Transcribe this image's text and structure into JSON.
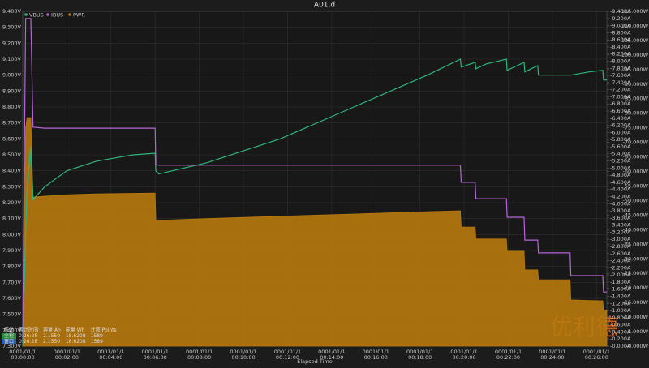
{
  "chart_data": {
    "type": "line",
    "title": "A01.d",
    "x_label": "Elapsed Time",
    "xlim": [
      0,
      1588
    ],
    "xticks": [
      {
        "value": 0,
        "label": "00:00:00",
        "date": "0001/01/1"
      },
      {
        "value": 120,
        "label": "00:02:00",
        "date": "0001/01/1"
      },
      {
        "value": 240,
        "label": "00:04:00",
        "date": "0001/01/1"
      },
      {
        "value": 360,
        "label": "00:06:00",
        "date": "0001/01/1"
      },
      {
        "value": 480,
        "label": "00:08:00",
        "date": "0001/01/1"
      },
      {
        "value": 600,
        "label": "00:10:00",
        "date": "0001/01/1"
      },
      {
        "value": 720,
        "label": "00:12:00",
        "date": "0001/01/1"
      },
      {
        "value": 840,
        "label": "00:14:00",
        "date": "0001/01/1"
      },
      {
        "value": 960,
        "label": "00:16:00",
        "date": "0001/01/1"
      },
      {
        "value": 1080,
        "label": "00:18:00",
        "date": "0001/01/1"
      },
      {
        "value": 1200,
        "label": "00:20:00",
        "date": "0001/01/1"
      },
      {
        "value": 1320,
        "label": "00:22:00",
        "date": "0001/01/1"
      },
      {
        "value": 1440,
        "label": "00:24:00",
        "date": "0001/01/1"
      },
      {
        "value": 1560,
        "label": "00:26:00",
        "date": "0001/01/1"
      }
    ],
    "ylim": [
      7.3,
      9.4
    ],
    "yticks": [
      {
        "value": 7.3,
        "label": "7.300V"
      },
      {
        "value": 7.4,
        "label": "7.400V"
      },
      {
        "value": 7.5,
        "label": "7.500V"
      },
      {
        "value": 7.6,
        "label": "7.600V"
      },
      {
        "value": 7.7,
        "label": "7.700V"
      },
      {
        "value": 7.8,
        "label": "7.800V"
      },
      {
        "value": 7.9,
        "label": "7.900V"
      },
      {
        "value": 8.0,
        "label": "8.000V"
      },
      {
        "value": 8.1,
        "label": "8.100V"
      },
      {
        "value": 8.2,
        "label": "8.200V"
      },
      {
        "value": 8.3,
        "label": "8.300V"
      },
      {
        "value": 8.4,
        "label": "8.400V"
      },
      {
        "value": 8.5,
        "label": "8.500V"
      },
      {
        "value": 8.6,
        "label": "8.600V"
      },
      {
        "value": 8.7,
        "label": "8.700V"
      },
      {
        "value": 8.8,
        "label": "8.800V"
      },
      {
        "value": 8.9,
        "label": "8.900V"
      },
      {
        "value": 9.0,
        "label": "9.000V"
      },
      {
        "value": 9.1,
        "label": "9.100V"
      },
      {
        "value": 9.2,
        "label": "9.200V"
      },
      {
        "value": 9.3,
        "label": "9.300V"
      },
      {
        "value": 9.4,
        "label": "9.400V"
      }
    ],
    "y2lim": [
      0,
      9.4
    ],
    "y2ticks": [
      {
        "value": 0,
        "label": "-0.000A"
      },
      {
        "value": 0.2,
        "label": "-0.200A"
      },
      {
        "value": 0.4,
        "label": "-0.400A"
      },
      {
        "value": 0.6,
        "label": "-0.600A"
      },
      {
        "value": 0.8,
        "label": "-0.800A"
      },
      {
        "value": 1.0,
        "label": "-1.000A"
      },
      {
        "value": 1.2,
        "label": "-1.200A"
      },
      {
        "value": 1.4,
        "label": "-1.400A"
      },
      {
        "value": 1.6,
        "label": "-1.600A"
      },
      {
        "value": 1.8,
        "label": "-1.800A"
      },
      {
        "value": 2.0,
        "label": "-2.000A"
      },
      {
        "value": 2.2,
        "label": "-2.200A"
      },
      {
        "value": 2.4,
        "label": "-2.400A"
      },
      {
        "value": 2.6,
        "label": "-2.600A"
      },
      {
        "value": 2.8,
        "label": "-2.800A"
      },
      {
        "value": 3.0,
        "label": "-3.000A"
      },
      {
        "value": 3.2,
        "label": "-3.200A"
      },
      {
        "value": 3.4,
        "label": "-3.400A"
      },
      {
        "value": 3.6,
        "label": "-3.600A"
      },
      {
        "value": 3.8,
        "label": "-3.800A"
      },
      {
        "value": 4.0,
        "label": "-4.000A"
      },
      {
        "value": 4.2,
        "label": "-4.200A"
      },
      {
        "value": 4.4,
        "label": "-4.400A"
      },
      {
        "value": 4.6,
        "label": "-4.600A"
      },
      {
        "value": 4.8,
        "label": "-4.800A"
      },
      {
        "value": 5.0,
        "label": "-5.000A"
      },
      {
        "value": 5.2,
        "label": "-5.200A"
      },
      {
        "value": 5.4,
        "label": "-5.400A"
      },
      {
        "value": 5.6,
        "label": "-5.600A"
      },
      {
        "value": 5.8,
        "label": "-5.800A"
      },
      {
        "value": 6.0,
        "label": "-6.000A"
      },
      {
        "value": 6.2,
        "label": "-6.200A"
      },
      {
        "value": 6.4,
        "label": "-6.400A"
      },
      {
        "value": 6.6,
        "label": "-6.600A"
      },
      {
        "value": 6.8,
        "label": "-6.800A"
      },
      {
        "value": 7.0,
        "label": "-7.000A"
      },
      {
        "value": 7.2,
        "label": "-7.200A"
      },
      {
        "value": 7.4,
        "label": "-7.400A"
      },
      {
        "value": 7.6,
        "label": "-7.600A"
      },
      {
        "value": 7.8,
        "label": "-7.800A"
      },
      {
        "value": 8.0,
        "label": "-8.000A"
      },
      {
        "value": 8.2,
        "label": "-8.200A"
      },
      {
        "value": 8.4,
        "label": "-8.400A"
      },
      {
        "value": 8.6,
        "label": "-8.600A"
      },
      {
        "value": 8.8,
        "label": "-8.800A"
      },
      {
        "value": 9.0,
        "label": "-9.000A"
      },
      {
        "value": 9.2,
        "label": "-9.200A"
      },
      {
        "value": 9.4,
        "label": "-9.400A"
      }
    ],
    "y3lim": [
      0,
      115
    ],
    "y3ticks": [
      {
        "value": 0,
        "label": "-0.000W"
      },
      {
        "value": 5,
        "label": "-5.000W"
      },
      {
        "value": 10,
        "label": "-10.000W"
      },
      {
        "value": 15,
        "label": "-15.000W"
      },
      {
        "value": 20,
        "label": "-20.000W"
      },
      {
        "value": 25,
        "label": "-25.000W"
      },
      {
        "value": 30,
        "label": "-30.000W"
      },
      {
        "value": 35,
        "label": "-35.000W"
      },
      {
        "value": 40,
        "label": "-40.000W"
      },
      {
        "value": 45,
        "label": "-45.000W"
      },
      {
        "value": 50,
        "label": "-50.000W"
      },
      {
        "value": 55,
        "label": "-55.000W"
      },
      {
        "value": 60,
        "label": "-60.000W"
      },
      {
        "value": 65,
        "label": "-65.000W"
      },
      {
        "value": 70,
        "label": "-70.000W"
      },
      {
        "value": 75,
        "label": "-75.000W"
      },
      {
        "value": 80,
        "label": "-80.000W"
      },
      {
        "value": 85,
        "label": "-85.000W"
      },
      {
        "value": 90,
        "label": "-90.000W"
      },
      {
        "value": 95,
        "label": "-95.000W"
      },
      {
        "value": 100,
        "label": "-100.000W"
      },
      {
        "value": 105,
        "label": "-105.000W"
      },
      {
        "value": 110,
        "label": "-110.000W"
      },
      {
        "value": 115,
        "label": "-115.000W"
      }
    ],
    "grid": true,
    "x": [
      0,
      8,
      12,
      22,
      28,
      60,
      120,
      200,
      300,
      360,
      362,
      370,
      500,
      700,
      900,
      1100,
      1190,
      1192,
      1230,
      1232,
      1260,
      1315,
      1317,
      1363,
      1365,
      1400,
      1402,
      1488,
      1490,
      1540,
      1577,
      1579,
      1588
    ],
    "series": [
      {
        "name": "VBUS",
        "color": "#2fb57c",
        "axis": "y",
        "values": [
          7.3,
          8.0,
          8.3,
          8.55,
          8.22,
          8.3,
          8.4,
          8.46,
          8.5,
          8.51,
          8.4,
          8.38,
          8.45,
          8.6,
          8.8,
          9.0,
          9.1,
          9.05,
          9.08,
          9.04,
          9.07,
          9.1,
          9.03,
          9.08,
          9.02,
          9.06,
          9.0,
          9.0,
          9.0,
          9.02,
          9.03,
          8.97,
          8.97
        ]
      },
      {
        "name": "IBUS",
        "color": "#b566d9",
        "axis": "y2",
        "values": [
          0.2,
          9.2,
          9.2,
          9.2,
          6.15,
          6.12,
          6.12,
          6.12,
          6.12,
          6.12,
          5.1,
          5.08,
          5.08,
          5.08,
          5.08,
          5.08,
          5.08,
          4.6,
          4.6,
          4.14,
          4.14,
          4.14,
          3.62,
          3.62,
          2.98,
          2.98,
          2.62,
          2.62,
          1.98,
          1.98,
          1.98,
          1.52,
          1.52
        ]
      },
      {
        "name": "PWR",
        "color": "#b8790e",
        "axis": "y3",
        "area": true,
        "values": [
          0,
          75,
          78.5,
          78.5,
          51.2,
          51.5,
          52,
          52.3,
          52.5,
          52.6,
          43.2,
          43.2,
          43.8,
          44.6,
          45.4,
          46.2,
          46.5,
          40.9,
          40.9,
          36.8,
          36.8,
          36.8,
          32.6,
          32.6,
          26.2,
          26.2,
          22.8,
          22.8,
          15.9,
          15.7,
          15.6,
          12.3,
          12.3
        ]
      }
    ]
  },
  "stats": {
    "header": [
      "统计",
      "累计时间",
      "容量 Ah",
      "能量 Wh",
      "计数 Points"
    ],
    "rows": [
      [
        "全程",
        "0:26:28",
        "2.1550",
        "18.6208",
        "1589"
      ],
      [
        "窗口",
        "0:26:28",
        "2.1550",
        "18.6208",
        "1589"
      ]
    ]
  },
  "watermark": "优利德"
}
